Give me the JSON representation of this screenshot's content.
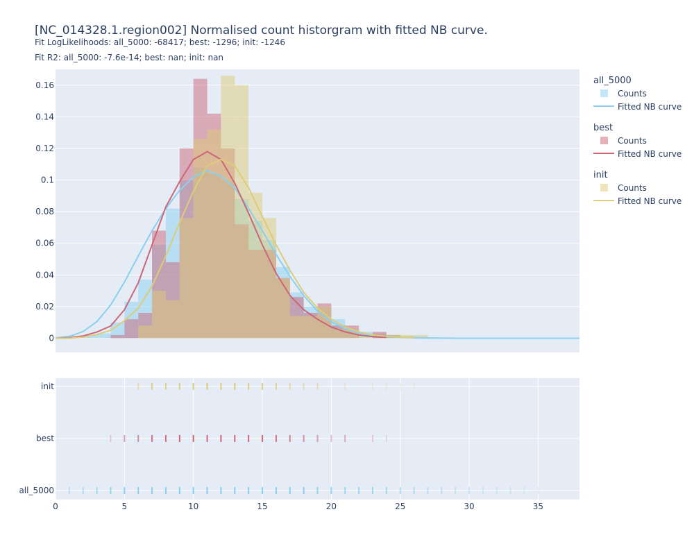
{
  "title": "[NC_014328.1.region002] Normalised count historgram with fitted NB curve.",
  "subtitle_1": "Fit LogLikelihoods: all_5000: -68417; best: -1296; init: -1246",
  "subtitle_2": "Fit R2: all_5000: -7.6e-14; best: nan; init: nan",
  "colors": {
    "all_5000": "#89d0f0",
    "best": "#cc6677",
    "init": "#ddcc77",
    "plot_bg": "#e5ecf6",
    "grid": "#ffffff"
  },
  "chart_data": [
    {
      "type": "bar",
      "subtype": "histogram-with-fitted-curve",
      "x_range": [
        0,
        38
      ],
      "ylim": [
        -0.009,
        0.17
      ],
      "y_ticks": [
        0,
        0.02,
        0.04,
        0.06,
        0.08,
        0.1,
        0.12,
        0.14,
        0.16
      ],
      "y_tick_labels": [
        "0",
        "0.02",
        "0.04",
        "0.06",
        "0.08",
        "0.1",
        "0.12",
        "0.14",
        "0.16"
      ],
      "grid": true,
      "legend_position": "right",
      "series": [
        {
          "name": "all_5000",
          "legend_group": "all_5000",
          "bar_label": "Counts",
          "curve_label": "Fitted NB curve",
          "bins": [
            [
              0,
              1,
              0.0006
            ],
            [
              1,
              2,
              0.0008
            ],
            [
              2,
              3,
              0.002
            ],
            [
              3,
              4,
              0.003
            ],
            [
              4,
              5,
              0.01
            ],
            [
              5,
              6,
              0.023
            ],
            [
              6,
              7,
              0.037
            ],
            [
              7,
              8,
              0.059
            ],
            [
              8,
              9,
              0.082
            ],
            [
              9,
              10,
              0.1
            ],
            [
              10,
              11,
              0.108
            ],
            [
              11,
              12,
              0.104
            ],
            [
              12,
              13,
              0.1
            ],
            [
              13,
              14,
              0.088
            ],
            [
              14,
              15,
              0.074
            ],
            [
              15,
              16,
              0.062
            ],
            [
              16,
              17,
              0.045
            ],
            [
              17,
              18,
              0.029
            ],
            [
              18,
              19,
              0.02
            ],
            [
              19,
              20,
              0.02
            ],
            [
              20,
              21,
              0.012
            ],
            [
              21,
              22,
              0.006
            ],
            [
              22,
              23,
              0.004
            ],
            [
              23,
              24,
              0.003
            ],
            [
              24,
              25,
              0.002
            ],
            [
              25,
              26,
              0.0015
            ],
            [
              26,
              27,
              0.001
            ],
            [
              27,
              28,
              0.0005
            ]
          ],
          "curve_x": [
            0,
            1,
            2,
            3,
            4,
            5,
            6,
            7,
            8,
            9,
            10,
            11,
            12,
            13,
            14,
            15,
            16,
            17,
            18,
            19,
            20,
            21,
            22,
            23,
            24,
            25,
            26,
            27,
            28,
            29,
            30,
            31,
            32,
            33,
            34,
            35,
            36,
            37,
            38
          ],
          "curve_y": [
            0.0002,
            0.0012,
            0.0042,
            0.0105,
            0.021,
            0.0355,
            0.052,
            0.068,
            0.082,
            0.0935,
            0.102,
            0.106,
            0.1025,
            0.095,
            0.082,
            0.068,
            0.053,
            0.039,
            0.027,
            0.017,
            0.0105,
            0.006,
            0.0032,
            0.0016,
            0.0008,
            0.0004,
            0.0002,
            0.0001,
            0.0001,
            0,
            0,
            0,
            0,
            0,
            0,
            0,
            0,
            0,
            0
          ]
        },
        {
          "name": "best",
          "legend_group": "best",
          "bar_label": "Counts",
          "curve_label": "Fitted NB curve",
          "bins": [
            [
              4,
              5,
              0.002
            ],
            [
              5,
              6,
              0.012
            ],
            [
              6,
              7,
              0.016
            ],
            [
              7,
              8,
              0.068
            ],
            [
              8,
              9,
              0.048
            ],
            [
              9,
              10,
              0.12
            ],
            [
              10,
              11,
              0.164
            ],
            [
              11,
              12,
              0.142
            ],
            [
              12,
              13,
              0.12
            ],
            [
              13,
              14,
              0.072
            ],
            [
              14,
              15,
              0.056
            ],
            [
              15,
              16,
              0.056
            ],
            [
              16,
              17,
              0.038
            ],
            [
              17,
              18,
              0.026
            ],
            [
              18,
              19,
              0.016
            ],
            [
              19,
              20,
              0.022
            ],
            [
              20,
              21,
              0.008
            ],
            [
              21,
              22,
              0.008
            ],
            [
              23,
              24,
              0.004
            ],
            [
              24,
              25,
              0.002
            ]
          ],
          "curve_x": [
            0,
            1,
            2,
            3,
            4,
            5,
            6,
            7,
            8,
            9,
            10,
            11,
            12,
            13,
            14,
            15,
            16,
            17,
            18,
            19,
            20,
            21,
            22,
            23,
            24
          ],
          "curve_y": [
            0,
            0.0003,
            0.0014,
            0.0039,
            0.0077,
            0.018,
            0.035,
            0.059,
            0.083,
            0.099,
            0.113,
            0.118,
            0.113,
            0.098,
            0.079,
            0.059,
            0.041,
            0.027,
            0.018,
            0.012,
            0.007,
            0.004,
            0.002,
            0.001,
            0.0005
          ]
        },
        {
          "name": "init",
          "legend_group": "init",
          "bar_label": "Counts",
          "curve_label": "Fitted NB curve",
          "bins": [
            [
              6,
              7,
              0.008
            ],
            [
              7,
              8,
              0.03
            ],
            [
              8,
              9,
              0.024
            ],
            [
              9,
              10,
              0.076
            ],
            [
              10,
              11,
              0.126
            ],
            [
              11,
              12,
              0.132
            ],
            [
              12,
              13,
              0.166
            ],
            [
              13,
              14,
              0.16
            ],
            [
              14,
              15,
              0.092
            ],
            [
              15,
              16,
              0.076
            ],
            [
              16,
              17,
              0.038
            ],
            [
              17,
              18,
              0.014
            ],
            [
              18,
              19,
              0.014
            ],
            [
              19,
              20,
              0.02
            ],
            [
              20,
              21,
              0.006
            ],
            [
              21,
              22,
              0.006
            ],
            [
              22,
              23,
              0.002
            ],
            [
              24,
              25,
              0.002
            ],
            [
              25,
              26,
              0.002
            ],
            [
              26,
              27,
              0.002
            ]
          ],
          "curve_x": [
            0,
            1,
            2,
            3,
            4,
            5,
            6,
            7,
            8,
            9,
            10,
            11,
            12,
            13,
            14,
            15,
            16,
            17,
            18,
            19,
            20,
            21,
            22,
            23,
            24,
            25,
            26
          ],
          "curve_y": [
            0,
            0,
            0.0007,
            0.0023,
            0.005,
            0.011,
            0.019,
            0.033,
            0.052,
            0.073,
            0.093,
            0.109,
            0.113,
            0.109,
            0.095,
            0.077,
            0.059,
            0.043,
            0.029,
            0.019,
            0.012,
            0.007,
            0.004,
            0.002,
            0.0012,
            0.0006,
            0.0003
          ]
        }
      ]
    },
    {
      "type": "scatter",
      "subtype": "rug",
      "x_range": [
        0,
        38
      ],
      "x_ticks": [
        0,
        5,
        10,
        15,
        20,
        25,
        30,
        35
      ],
      "x_tick_labels": [
        "0",
        "5",
        "10",
        "15",
        "20",
        "25",
        "30",
        "35"
      ],
      "categories": [
        "init",
        "best",
        "all_5000"
      ],
      "series": [
        {
          "name": "init",
          "x": [
            6,
            7,
            8,
            9,
            10,
            11,
            12,
            13,
            14,
            15,
            16,
            17,
            18,
            19,
            21,
            23,
            24,
            25,
            26
          ],
          "strength": [
            0.5,
            0.9,
            0.8,
            0.9,
            1,
            1,
            1,
            1,
            0.9,
            0.9,
            0.8,
            0.6,
            0.5,
            0.5,
            0.3,
            0.2,
            0.2,
            0.2,
            0.2
          ]
        },
        {
          "name": "best",
          "x": [
            4,
            5,
            6,
            7,
            8,
            9,
            10,
            11,
            12,
            13,
            14,
            15,
            16,
            17,
            18,
            19,
            20,
            21,
            23,
            24
          ],
          "strength": [
            0.3,
            0.6,
            0.7,
            0.9,
            0.9,
            1,
            1,
            1,
            1,
            1,
            1,
            1,
            0.9,
            0.8,
            0.7,
            0.6,
            0.4,
            0.5,
            0.3,
            0.2
          ]
        },
        {
          "name": "all_5000",
          "x": [
            1,
            2,
            3,
            4,
            5,
            6,
            7,
            8,
            9,
            10,
            11,
            12,
            13,
            14,
            15,
            16,
            17,
            18,
            19,
            20,
            21,
            22,
            23,
            24,
            25,
            26,
            27,
            28,
            29,
            30,
            31,
            32,
            33,
            34,
            35
          ],
          "strength": [
            0.5,
            0.6,
            0.7,
            0.9,
            1,
            1,
            1,
            1,
            1,
            1,
            1,
            1,
            1,
            1,
            1,
            1,
            1,
            1,
            0.9,
            0.9,
            0.8,
            0.8,
            0.8,
            0.7,
            0.7,
            0.6,
            0.5,
            0.5,
            0.4,
            0.4,
            0.3,
            0.3,
            0.3,
            0.2,
            0.2
          ]
        }
      ]
    }
  ]
}
